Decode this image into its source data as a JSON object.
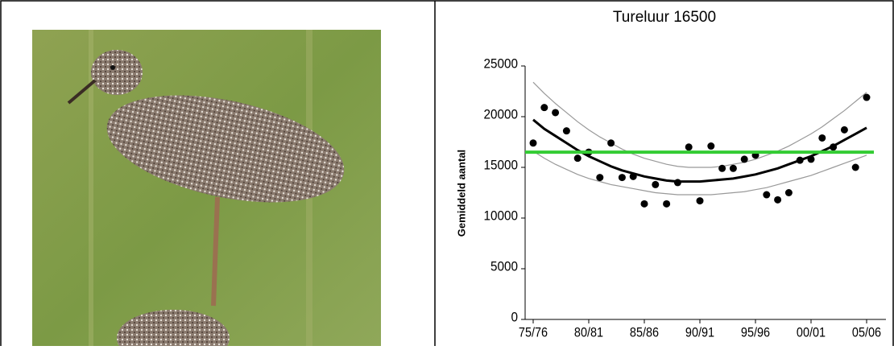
{
  "chart_data": {
    "type": "scatter",
    "title": "Tureluur 16500",
    "y_label": "Gemiddeld aantal",
    "categories": [
      "75/76",
      null,
      null,
      null,
      null,
      "80/81",
      null,
      null,
      null,
      null,
      "85/86",
      null,
      null,
      null,
      null,
      "90/91",
      null,
      null,
      null,
      null,
      "95/96",
      null,
      null,
      null,
      null,
      "00/01",
      null,
      null,
      null,
      null,
      "05/06"
    ],
    "ylim": [
      0,
      25000
    ],
    "yticks": [
      0,
      5000,
      10000,
      15000,
      20000,
      25000
    ],
    "series": [
      {
        "type": "line",
        "color": "#999999",
        "line_width": 1.2,
        "values": [
          23400,
          22300,
          21300,
          20400,
          19500,
          18700,
          18000,
          17400,
          16800,
          16300,
          15900,
          15600,
          15300,
          15100,
          15000,
          15000,
          15000,
          15100,
          15300,
          15500,
          15800,
          16200,
          16600,
          17100,
          17700,
          18300,
          19000,
          19800,
          20600,
          21500,
          22400
        ]
      },
      {
        "type": "line",
        "color": "#999999",
        "line_width": 1.2,
        "values": [
          16600,
          15900,
          15300,
          14800,
          14300,
          13900,
          13600,
          13300,
          13100,
          12900,
          12700,
          12500,
          12400,
          12300,
          12300,
          12300,
          12300,
          12400,
          12500,
          12600,
          12800,
          13000,
          13300,
          13600,
          13900,
          14200,
          14600,
          15000,
          15400,
          15800,
          16200
        ]
      },
      {
        "type": "line",
        "color": "#000000",
        "line_width": 3,
        "values": [
          19700,
          18800,
          18100,
          17400,
          16700,
          16100,
          15600,
          15100,
          14700,
          14400,
          14100,
          13900,
          13700,
          13600,
          13600,
          13600,
          13700,
          13800,
          13900,
          14100,
          14300,
          14600,
          14900,
          15300,
          15700,
          16100,
          16600,
          17100,
          17700,
          18300,
          18900
        ]
      },
      {
        "type": "scatter",
        "color": "#000000",
        "values": [
          17400,
          20900,
          20400,
          18600,
          15900,
          16500,
          14000,
          17400,
          14000,
          14100,
          11400,
          13300,
          11400,
          13500,
          17000,
          11700,
          17100,
          14900,
          14900,
          15800,
          16200,
          12300,
          11800,
          12500,
          15700,
          15800,
          17900,
          17000,
          18700,
          15000,
          21900
        ]
      }
    ],
    "reference_line": {
      "value": 16500,
      "color": "#33cc33"
    }
  }
}
